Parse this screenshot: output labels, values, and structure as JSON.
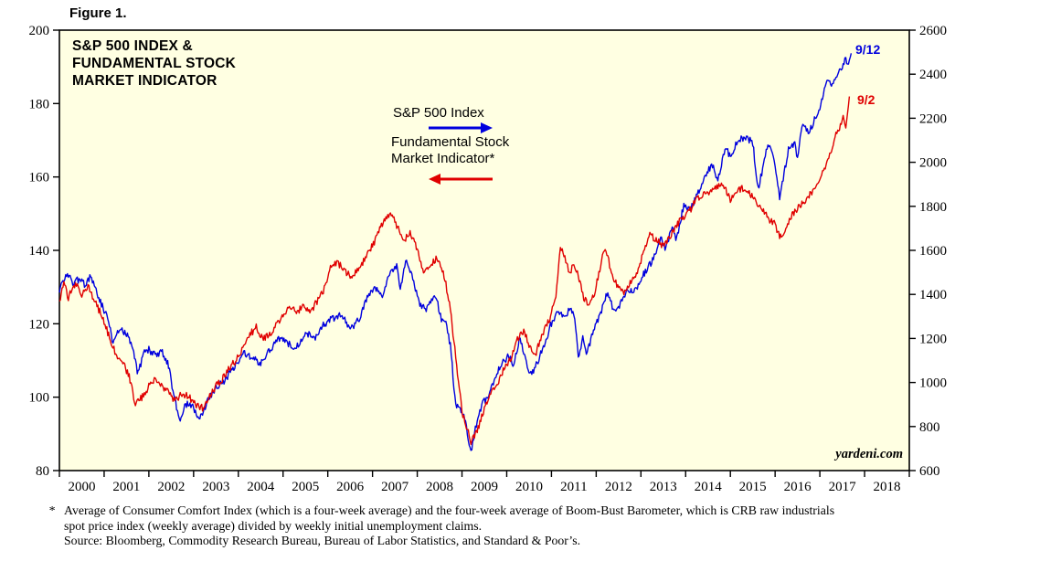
{
  "figure_label": "Figure 1.",
  "chart": {
    "title": "S&P 500 INDEX &\nFUNDAMENTAL STOCK\nMARKET INDICATOR",
    "legend": {
      "sp500_label": "S&P 500 Index",
      "fsmi_label": "Fundamental Stock\nMarket Indicator*"
    },
    "annotations": {
      "sp500_end_label": "9/12",
      "fsmi_end_label": "9/2",
      "watermark": "yardeni.com"
    }
  },
  "footnote": {
    "marker": "*",
    "text": "Average of Consumer Comfort Index (which is a four-week average) and the four-week average of Boom-Bust Barometer, which is CRB raw industrials\nspot price index (weekly average) divided by weekly initial unemployment claims.",
    "source": "Source: Bloomberg, Commodity Research Bureau, Bureau of Labor Statistics, and Standard & Poor’s."
  },
  "chart_data": {
    "type": "line",
    "title": "S&P 500 INDEX & FUNDAMENTAL STOCK MARKET INDICATOR",
    "background": "#FFFFE2",
    "x_range": [
      2000,
      2019
    ],
    "x_tick_years": [
      2000,
      2001,
      2002,
      2003,
      2004,
      2005,
      2006,
      2007,
      2008,
      2009,
      2010,
      2011,
      2012,
      2013,
      2014,
      2015,
      2016,
      2017,
      2018
    ],
    "left_axis": {
      "applies_to": "Fundamental Stock Market Indicator",
      "range": [
        80,
        200
      ],
      "ticks": [
        80,
        100,
        120,
        140,
        160,
        180,
        200
      ]
    },
    "right_axis": {
      "applies_to": "S&P 500 Index",
      "range": [
        600,
        2600
      ],
      "ticks": [
        600,
        800,
        1000,
        1200,
        1400,
        1600,
        1800,
        2000,
        2200,
        2400,
        2600
      ]
    },
    "grid": false,
    "series": [
      {
        "key": "sp500",
        "name": "S&P 500 Index",
        "axis": "right",
        "color": "#0000DE",
        "end_label": "9/12",
        "points": [
          [
            2000.0,
            1420
          ],
          [
            2000.15,
            1500
          ],
          [
            2000.3,
            1450
          ],
          [
            2000.45,
            1470
          ],
          [
            2000.6,
            1440
          ],
          [
            2000.7,
            1490
          ],
          [
            2000.85,
            1400
          ],
          [
            2001.0,
            1330
          ],
          [
            2001.1,
            1280
          ],
          [
            2001.2,
            1170
          ],
          [
            2001.35,
            1250
          ],
          [
            2001.5,
            1220
          ],
          [
            2001.65,
            1160
          ],
          [
            2001.75,
            1040
          ],
          [
            2001.9,
            1140
          ],
          [
            2002.0,
            1150
          ],
          [
            2002.15,
            1120
          ],
          [
            2002.3,
            1140
          ],
          [
            2002.45,
            1070
          ],
          [
            2002.55,
            950
          ],
          [
            2002.7,
            820
          ],
          [
            2002.8,
            900
          ],
          [
            2002.95,
            900
          ],
          [
            2003.1,
            840
          ],
          [
            2003.2,
            860
          ],
          [
            2003.35,
            930
          ],
          [
            2003.5,
            980
          ],
          [
            2003.65,
            1000
          ],
          [
            2003.8,
            1040
          ],
          [
            2003.95,
            1080
          ],
          [
            2004.1,
            1140
          ],
          [
            2004.3,
            1110
          ],
          [
            2004.5,
            1090
          ],
          [
            2004.65,
            1130
          ],
          [
            2004.8,
            1170
          ],
          [
            2004.95,
            1210
          ],
          [
            2005.1,
            1180
          ],
          [
            2005.3,
            1160
          ],
          [
            2005.5,
            1230
          ],
          [
            2005.7,
            1200
          ],
          [
            2005.9,
            1260
          ],
          [
            2006.1,
            1290
          ],
          [
            2006.3,
            1310
          ],
          [
            2006.5,
            1240
          ],
          [
            2006.7,
            1290
          ],
          [
            2006.9,
            1390
          ],
          [
            2007.05,
            1430
          ],
          [
            2007.2,
            1390
          ],
          [
            2007.4,
            1500
          ],
          [
            2007.55,
            1530
          ],
          [
            2007.62,
            1430
          ],
          [
            2007.75,
            1550
          ],
          [
            2007.9,
            1470
          ],
          [
            2008.05,
            1350
          ],
          [
            2008.2,
            1330
          ],
          [
            2008.4,
            1400
          ],
          [
            2008.55,
            1280
          ],
          [
            2008.65,
            1260
          ],
          [
            2008.75,
            1160
          ],
          [
            2008.85,
            900
          ],
          [
            2008.95,
            880
          ],
          [
            2009.05,
            850
          ],
          [
            2009.2,
            680
          ],
          [
            2009.3,
            790
          ],
          [
            2009.45,
            900
          ],
          [
            2009.6,
            940
          ],
          [
            2009.75,
            1030
          ],
          [
            2009.9,
            1090
          ],
          [
            2010.05,
            1120
          ],
          [
            2010.15,
            1070
          ],
          [
            2010.3,
            1210
          ],
          [
            2010.45,
            1080
          ],
          [
            2010.55,
            1030
          ],
          [
            2010.7,
            1100
          ],
          [
            2010.85,
            1180
          ],
          [
            2011.0,
            1270
          ],
          [
            2011.15,
            1320
          ],
          [
            2011.3,
            1290
          ],
          [
            2011.4,
            1340
          ],
          [
            2011.5,
            1320
          ],
          [
            2011.6,
            1120
          ],
          [
            2011.7,
            1200
          ],
          [
            2011.8,
            1130
          ],
          [
            2011.95,
            1250
          ],
          [
            2012.1,
            1310
          ],
          [
            2012.25,
            1410
          ],
          [
            2012.4,
            1320
          ],
          [
            2012.55,
            1360
          ],
          [
            2012.7,
            1430
          ],
          [
            2012.85,
            1410
          ],
          [
            2013.0,
            1470
          ],
          [
            2013.15,
            1520
          ],
          [
            2013.3,
            1570
          ],
          [
            2013.45,
            1650
          ],
          [
            2013.55,
            1610
          ],
          [
            2013.7,
            1700
          ],
          [
            2013.8,
            1650
          ],
          [
            2013.95,
            1800
          ],
          [
            2014.1,
            1780
          ],
          [
            2014.3,
            1870
          ],
          [
            2014.45,
            1950
          ],
          [
            2014.6,
            1990
          ],
          [
            2014.72,
            1920
          ],
          [
            2014.9,
            2070
          ],
          [
            2015.0,
            2020
          ],
          [
            2015.15,
            2100
          ],
          [
            2015.35,
            2110
          ],
          [
            2015.5,
            2090
          ],
          [
            2015.62,
            1880
          ],
          [
            2015.75,
            2000
          ],
          [
            2015.85,
            2090
          ],
          [
            2016.0,
            1990
          ],
          [
            2016.1,
            1830
          ],
          [
            2016.3,
            2060
          ],
          [
            2016.45,
            2090
          ],
          [
            2016.5,
            2010
          ],
          [
            2016.6,
            2170
          ],
          [
            2016.75,
            2130
          ],
          [
            2016.9,
            2200
          ],
          [
            2017.05,
            2280
          ],
          [
            2017.15,
            2360
          ],
          [
            2017.3,
            2350
          ],
          [
            2017.4,
            2400
          ],
          [
            2017.5,
            2440
          ],
          [
            2017.57,
            2470
          ],
          [
            2017.63,
            2440
          ],
          [
            2017.7,
            2495
          ]
        ]
      },
      {
        "key": "fsmi",
        "name": "Fundamental Stock Market Indicator",
        "axis": "left",
        "color": "#E00000",
        "end_label": "9/2",
        "points": [
          [
            2000.0,
            126
          ],
          [
            2000.1,
            131
          ],
          [
            2000.2,
            127
          ],
          [
            2000.35,
            131
          ],
          [
            2000.5,
            128
          ],
          [
            2000.65,
            130
          ],
          [
            2000.8,
            126
          ],
          [
            2000.95,
            122
          ],
          [
            2001.1,
            117
          ],
          [
            2001.25,
            112
          ],
          [
            2001.4,
            110
          ],
          [
            2001.55,
            106
          ],
          [
            2001.7,
            98
          ],
          [
            2001.85,
            100
          ],
          [
            2002.0,
            103
          ],
          [
            2002.15,
            105
          ],
          [
            2002.3,
            103
          ],
          [
            2002.45,
            101
          ],
          [
            2002.6,
            99
          ],
          [
            2002.75,
            101
          ],
          [
            2002.9,
            100
          ],
          [
            2003.05,
            98
          ],
          [
            2003.2,
            97
          ],
          [
            2003.35,
            100
          ],
          [
            2003.5,
            103
          ],
          [
            2003.65,
            105
          ],
          [
            2003.8,
            108
          ],
          [
            2003.95,
            110
          ],
          [
            2004.1,
            113
          ],
          [
            2004.25,
            117
          ],
          [
            2004.4,
            119
          ],
          [
            2004.55,
            116
          ],
          [
            2004.7,
            117
          ],
          [
            2004.85,
            120
          ],
          [
            2005.0,
            122
          ],
          [
            2005.15,
            125
          ],
          [
            2005.3,
            123
          ],
          [
            2005.45,
            125
          ],
          [
            2005.6,
            123
          ],
          [
            2005.75,
            126
          ],
          [
            2005.9,
            129
          ],
          [
            2006.05,
            135
          ],
          [
            2006.2,
            137
          ],
          [
            2006.35,
            135
          ],
          [
            2006.5,
            133
          ],
          [
            2006.65,
            134
          ],
          [
            2006.8,
            137
          ],
          [
            2006.95,
            140
          ],
          [
            2007.1,
            144
          ],
          [
            2007.25,
            148
          ],
          [
            2007.4,
            150
          ],
          [
            2007.5,
            148
          ],
          [
            2007.6,
            145
          ],
          [
            2007.72,
            143
          ],
          [
            2007.85,
            145
          ],
          [
            2008.0,
            140
          ],
          [
            2008.15,
            134
          ],
          [
            2008.3,
            136
          ],
          [
            2008.45,
            138
          ],
          [
            2008.6,
            133
          ],
          [
            2008.72,
            126
          ],
          [
            2008.85,
            112
          ],
          [
            2009.0,
            96
          ],
          [
            2009.1,
            92
          ],
          [
            2009.2,
            88
          ],
          [
            2009.35,
            91
          ],
          [
            2009.5,
            97
          ],
          [
            2009.65,
            101
          ],
          [
            2009.8,
            104
          ],
          [
            2009.95,
            108
          ],
          [
            2010.1,
            111
          ],
          [
            2010.25,
            116
          ],
          [
            2010.4,
            118
          ],
          [
            2010.5,
            114
          ],
          [
            2010.65,
            112
          ],
          [
            2010.8,
            117
          ],
          [
            2010.95,
            121
          ],
          [
            2011.1,
            128
          ],
          [
            2011.2,
            141
          ],
          [
            2011.3,
            138
          ],
          [
            2011.4,
            134
          ],
          [
            2011.5,
            136
          ],
          [
            2011.6,
            133
          ],
          [
            2011.72,
            127
          ],
          [
            2011.85,
            125
          ],
          [
            2011.95,
            128
          ],
          [
            2012.05,
            133
          ],
          [
            2012.15,
            140
          ],
          [
            2012.25,
            139
          ],
          [
            2012.35,
            133
          ],
          [
            2012.5,
            130
          ],
          [
            2012.62,
            128
          ],
          [
            2012.75,
            131
          ],
          [
            2012.88,
            133
          ],
          [
            2013.0,
            137
          ],
          [
            2013.1,
            141
          ],
          [
            2013.2,
            144
          ],
          [
            2013.35,
            143
          ],
          [
            2013.5,
            141
          ],
          [
            2013.65,
            144
          ],
          [
            2013.8,
            147
          ],
          [
            2013.95,
            149
          ],
          [
            2014.1,
            151
          ],
          [
            2014.25,
            154
          ],
          [
            2014.4,
            155
          ],
          [
            2014.55,
            156
          ],
          [
            2014.7,
            157
          ],
          [
            2014.85,
            158
          ],
          [
            2015.0,
            154
          ],
          [
            2015.15,
            156
          ],
          [
            2015.3,
            157
          ],
          [
            2015.45,
            155
          ],
          [
            2015.6,
            153
          ],
          [
            2015.75,
            151
          ],
          [
            2015.9,
            148
          ],
          [
            2016.0,
            147
          ],
          [
            2016.1,
            144
          ],
          [
            2016.25,
            146
          ],
          [
            2016.4,
            150
          ],
          [
            2016.55,
            152
          ],
          [
            2016.7,
            154
          ],
          [
            2016.85,
            156
          ],
          [
            2017.0,
            159
          ],
          [
            2017.1,
            162
          ],
          [
            2017.25,
            167
          ],
          [
            2017.35,
            171
          ],
          [
            2017.45,
            174
          ],
          [
            2017.52,
            176
          ],
          [
            2017.58,
            173
          ],
          [
            2017.67,
            183
          ]
        ]
      }
    ]
  }
}
